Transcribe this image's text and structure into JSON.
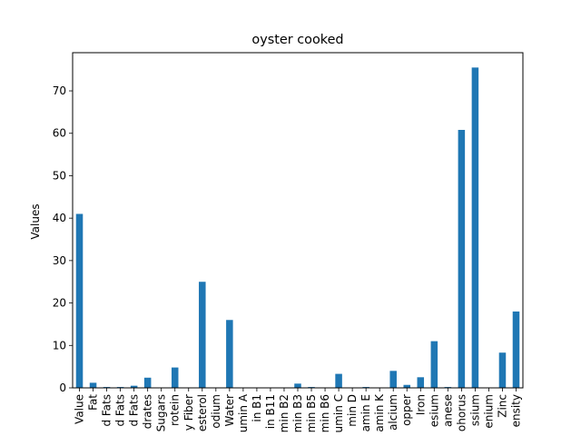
{
  "chart_data": {
    "type": "bar",
    "title": "oyster cooked",
    "xlabel": "",
    "ylabel": "Values",
    "ylim": [
      0,
      79
    ],
    "yticks": [
      0,
      10,
      20,
      30,
      40,
      50,
      60,
      70
    ],
    "grid": false,
    "legend": "none",
    "bar_color": "#1f77b4",
    "categories": [
      "Value",
      "Fat",
      "d Fats",
      "d Fats",
      "d Fats",
      "drates",
      "Sugars",
      "rotein",
      "y Fiber",
      "esterol",
      "odium",
      "Water",
      "umin A",
      "in B1",
      "in B11",
      "min B2",
      "min B3",
      "min B5",
      "min B6",
      "umin C",
      "min D",
      "amin E",
      "amin K",
      "alcium",
      "opper",
      "Iron",
      "esium",
      "anese",
      "ohorus",
      "ssium",
      "enium",
      "Zinc",
      "ensity"
    ],
    "values": [
      41.0,
      1.2,
      0.2,
      0.2,
      0.5,
      2.4,
      0.0,
      4.8,
      0.0,
      25.0,
      0.0,
      16.0,
      0.0,
      0.0,
      0.0,
      0.0,
      1.0,
      0.2,
      0.1,
      3.3,
      0.0,
      0.2,
      0.0,
      4.0,
      0.7,
      2.5,
      11.0,
      0.2,
      60.8,
      75.5,
      0.0,
      8.3,
      18.0
    ]
  }
}
